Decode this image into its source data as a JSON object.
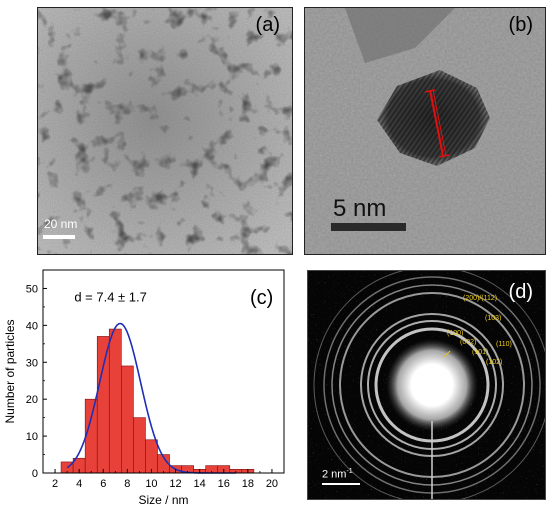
{
  "panels": {
    "a": {
      "label": "(a)",
      "scale_bar": "20 nm"
    },
    "b": {
      "label": "(b)",
      "scale_bar": "5 nm"
    },
    "c": {
      "label": "(c)"
    },
    "d": {
      "label": "(d)",
      "scale_bar": "2 nm",
      "scale_bar_sup": "-1",
      "rings": [
        {
          "text": "(200)/(112)"
        },
        {
          "text": "(103)"
        },
        {
          "text": "(100)"
        },
        {
          "text": "(002)"
        },
        {
          "text": "(110)"
        },
        {
          "text": "(101)"
        },
        {
          "text": "(102)"
        }
      ]
    }
  },
  "chart_data": {
    "type": "bar",
    "xlabel": "Size / nm",
    "ylabel": "Number of particles",
    "annotation": "d = 7.4 ± 1.7",
    "xlim": [
      1,
      21
    ],
    "ylim": [
      0,
      55
    ],
    "xticks": [
      2,
      4,
      6,
      8,
      10,
      12,
      14,
      16,
      18,
      20
    ],
    "yticks": [
      0,
      10,
      20,
      30,
      40,
      50
    ],
    "bin_width": 1,
    "bars": [
      {
        "x": 3,
        "y": 3
      },
      {
        "x": 4,
        "y": 4
      },
      {
        "x": 5,
        "y": 20
      },
      {
        "x": 6,
        "y": 37
      },
      {
        "x": 7,
        "y": 39
      },
      {
        "x": 8,
        "y": 29
      },
      {
        "x": 9,
        "y": 15
      },
      {
        "x": 10,
        "y": 9
      },
      {
        "x": 11,
        "y": 5
      },
      {
        "x": 12,
        "y": 2
      },
      {
        "x": 13,
        "y": 2
      },
      {
        "x": 14,
        "y": 1
      },
      {
        "x": 15,
        "y": 2
      },
      {
        "x": 16,
        "y": 2
      },
      {
        "x": 17,
        "y": 1
      },
      {
        "x": 18,
        "y": 1
      }
    ],
    "fit": {
      "type": "gaussian",
      "mean": 7.4,
      "sigma": 1.7,
      "peak": 40.5,
      "x_range": [
        3,
        17
      ]
    },
    "colors": {
      "bar": "#e8413a",
      "bar_edge": "#7a1010",
      "fit": "#1f2fb5"
    }
  }
}
